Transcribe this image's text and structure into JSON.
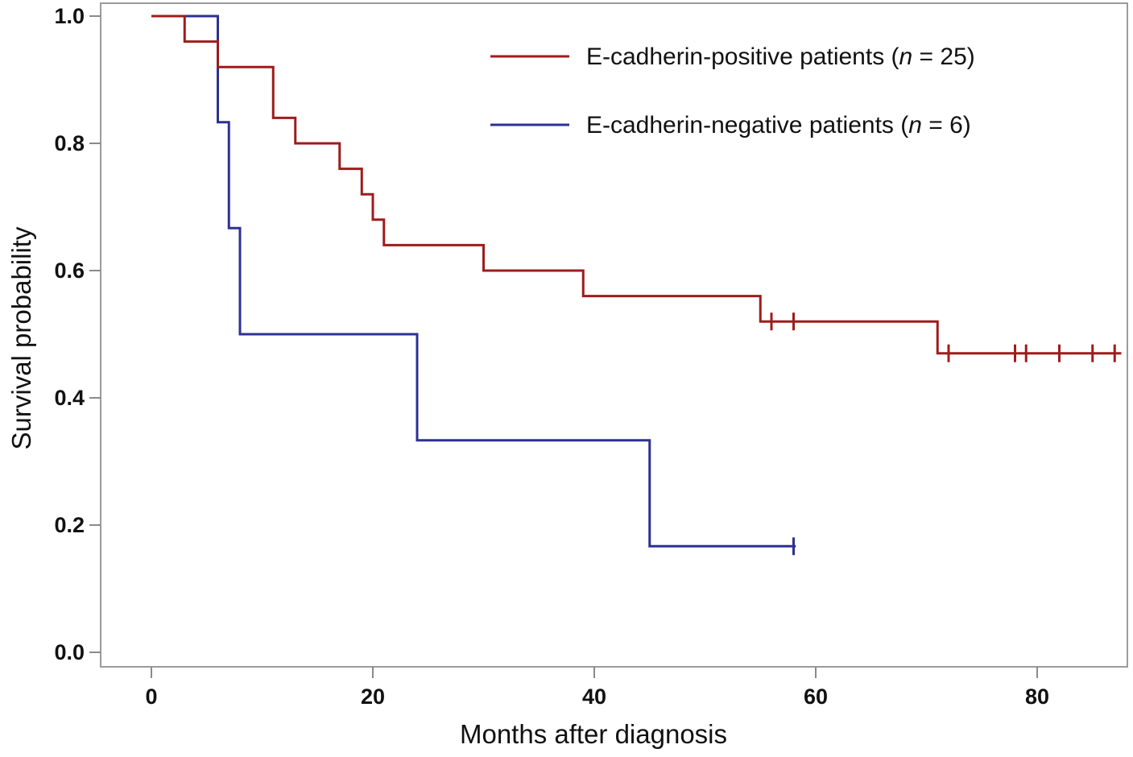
{
  "chart_data": {
    "type": "line",
    "subtype": "kaplan-meier-step-curves",
    "title": "",
    "xlabel": "Months after diagnosis",
    "ylabel": "Survival probability",
    "x_ticks": [
      0,
      20,
      40,
      60,
      80
    ],
    "x_tick_labels": [
      "0",
      "20",
      "40",
      "60",
      "80"
    ],
    "y_ticks": [
      0.0,
      0.2,
      0.4,
      0.6,
      0.8,
      1.0
    ],
    "y_tick_labels": [
      "0.0",
      "0.2",
      "0.4",
      "0.6",
      "0.8",
      "1.0"
    ],
    "xlim": [
      -4.6,
      88.2
    ],
    "ylim": [
      -0.023,
      1.02
    ],
    "grid": false,
    "legend_position": "top-right-inside",
    "frame_color": "#9b9b9b",
    "tick_color": "#8a8a8a",
    "text_color": "#111111",
    "series": [
      {
        "name": "E-cadherin-negative patients (n = 6)",
        "label_before": "E-cadherin-negative patients (",
        "label_var": "n",
        "label_after": " = 6)",
        "n": 6,
        "color": "#2c3192",
        "steps": [
          [
            0,
            1.0
          ],
          [
            6,
            0.8333
          ],
          [
            7,
            0.6667
          ],
          [
            8,
            0.5
          ],
          [
            24,
            0.3333
          ],
          [
            45,
            0.1667
          ]
        ],
        "end_month": 58.2,
        "censors": [
          [
            58,
            0.1667
          ]
        ]
      },
      {
        "name": "E-cadherin-positive patients (n = 25)",
        "label_before": "E-cadherin-positive patients (",
        "label_var": "n",
        "label_after": " = 25)",
        "n": 25,
        "color": "#9e1c1c",
        "steps": [
          [
            0,
            1.0
          ],
          [
            3,
            0.96
          ],
          [
            6,
            0.92
          ],
          [
            11,
            0.84
          ],
          [
            13,
            0.8
          ],
          [
            17,
            0.76
          ],
          [
            19,
            0.72
          ],
          [
            20,
            0.68
          ],
          [
            21,
            0.64
          ],
          [
            30,
            0.6
          ],
          [
            39,
            0.56
          ],
          [
            55,
            0.52
          ],
          [
            71,
            0.47
          ]
        ],
        "end_month": 87.6,
        "censors": [
          [
            56,
            0.52
          ],
          [
            58,
            0.52
          ],
          [
            72,
            0.47
          ],
          [
            78,
            0.47
          ],
          [
            79,
            0.47
          ],
          [
            82,
            0.47
          ],
          [
            85,
            0.47
          ],
          [
            87,
            0.47
          ]
        ]
      }
    ],
    "legend_order": [
      "E-cadherin-positive patients (n = 25)",
      "E-cadherin-negative patients (n = 6)"
    ]
  }
}
